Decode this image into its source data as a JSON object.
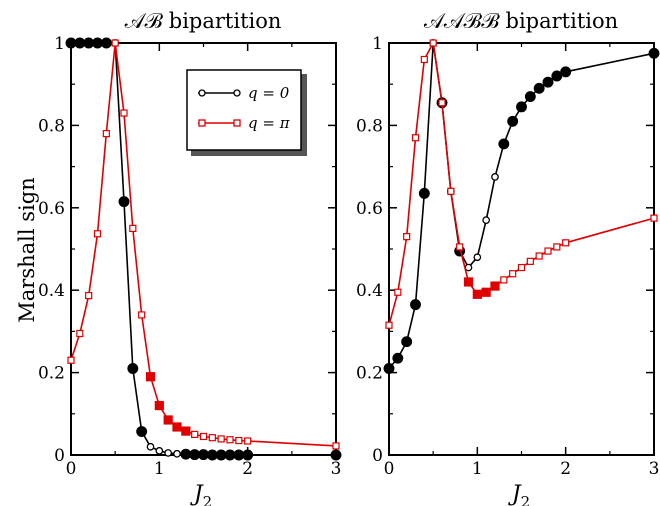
{
  "figure": {
    "ylabel": "Marshall sign"
  },
  "chart_data": [
    {
      "type": "line",
      "title": "𝒜ℬ bipartition",
      "xlabel": "J",
      "xlabel_sub": "2",
      "xlim": [
        0,
        3
      ],
      "ylim": [
        0,
        1
      ],
      "xticks": [
        "0",
        "1",
        "2",
        "3"
      ],
      "yticks": [
        "0",
        "0.2",
        "0.4",
        "0.6",
        "0.8",
        "1"
      ],
      "legend": {
        "position": "top-right",
        "entries": [
          {
            "label": "q = 0",
            "color": "#000000",
            "marker": "circle"
          },
          {
            "label": "q = π",
            "color": "#e00000",
            "marker": "square"
          }
        ]
      },
      "series": [
        {
          "name": "q = 0",
          "color": "#000000",
          "marker": "circle",
          "x": [
            0.0,
            0.1,
            0.2,
            0.3,
            0.4,
            0.5,
            0.6,
            0.7,
            0.8,
            0.9,
            1.0,
            1.1,
            1.2,
            1.3,
            1.4,
            1.5,
            1.6,
            1.7,
            1.8,
            1.9,
            2.0,
            3.0
          ],
          "y": [
            1.0,
            1.0,
            1.0,
            1.0,
            1.0,
            1.0,
            0.615,
            0.21,
            0.057,
            0.02,
            0.01,
            0.005,
            0.003,
            0.002,
            0.001,
            0.001,
            0.0,
            0.0,
            0.0,
            0.0,
            0.0,
            0.0
          ],
          "filled": [
            true,
            true,
            true,
            true,
            true,
            false,
            true,
            true,
            true,
            false,
            false,
            false,
            false,
            true,
            true,
            true,
            true,
            true,
            true,
            true,
            true,
            true
          ]
        },
        {
          "name": "q = π",
          "color": "#e00000",
          "marker": "square",
          "x": [
            0.0,
            0.1,
            0.2,
            0.3,
            0.4,
            0.5,
            0.6,
            0.7,
            0.8,
            0.9,
            1.0,
            1.1,
            1.2,
            1.3,
            1.4,
            1.5,
            1.6,
            1.7,
            1.8,
            1.9,
            2.0,
            3.0
          ],
          "y": [
            0.23,
            0.295,
            0.387,
            0.537,
            0.78,
            1.0,
            0.83,
            0.55,
            0.34,
            0.19,
            0.12,
            0.085,
            0.068,
            0.058,
            0.05,
            0.045,
            0.042,
            0.039,
            0.037,
            0.035,
            0.034,
            0.022
          ],
          "filled": [
            false,
            false,
            false,
            false,
            false,
            false,
            false,
            false,
            false,
            true,
            true,
            true,
            true,
            true,
            false,
            false,
            false,
            false,
            false,
            false,
            false,
            false
          ]
        }
      ]
    },
    {
      "type": "line",
      "title": "𝒜𝒜ℬℬ bipartition",
      "xlabel": "J",
      "xlabel_sub": "2",
      "xlim": [
        0,
        3
      ],
      "ylim": [
        0,
        1
      ],
      "xticks": [
        "0",
        "1",
        "2",
        "3"
      ],
      "yticks": [
        "0",
        "0.2",
        "0.4",
        "0.6",
        "0.8",
        "1"
      ],
      "series": [
        {
          "name": "q = 0",
          "color": "#000000",
          "marker": "circle",
          "x": [
            0.0,
            0.1,
            0.2,
            0.3,
            0.4,
            0.5,
            0.6,
            0.7,
            0.8,
            0.9,
            1.0,
            1.1,
            1.2,
            1.3,
            1.4,
            1.5,
            1.6,
            1.7,
            1.8,
            1.9,
            2.0,
            3.0
          ],
          "y": [
            0.21,
            0.235,
            0.275,
            0.365,
            0.635,
            1.0,
            0.855,
            0.64,
            0.495,
            0.455,
            0.48,
            0.57,
            0.675,
            0.755,
            0.81,
            0.845,
            0.87,
            0.89,
            0.905,
            0.92,
            0.93,
            0.975
          ],
          "filled": [
            true,
            true,
            true,
            true,
            true,
            false,
            true,
            false,
            true,
            false,
            false,
            false,
            false,
            true,
            true,
            true,
            true,
            true,
            true,
            true,
            true,
            true
          ]
        },
        {
          "name": "q = π",
          "color": "#e00000",
          "marker": "square",
          "x": [
            0.0,
            0.1,
            0.2,
            0.3,
            0.4,
            0.5,
            0.6,
            0.7,
            0.8,
            0.9,
            1.0,
            1.1,
            1.2,
            1.3,
            1.4,
            1.5,
            1.6,
            1.7,
            1.8,
            1.9,
            2.0,
            3.0
          ],
          "y": [
            0.315,
            0.395,
            0.53,
            0.77,
            0.96,
            1.0,
            0.855,
            0.64,
            0.505,
            0.42,
            0.39,
            0.395,
            0.41,
            0.425,
            0.44,
            0.455,
            0.47,
            0.483,
            0.495,
            0.505,
            0.515,
            0.575
          ],
          "filled": [
            false,
            false,
            false,
            false,
            false,
            false,
            false,
            false,
            false,
            true,
            true,
            true,
            true,
            false,
            false,
            false,
            false,
            false,
            false,
            false,
            false,
            false
          ]
        }
      ]
    }
  ]
}
